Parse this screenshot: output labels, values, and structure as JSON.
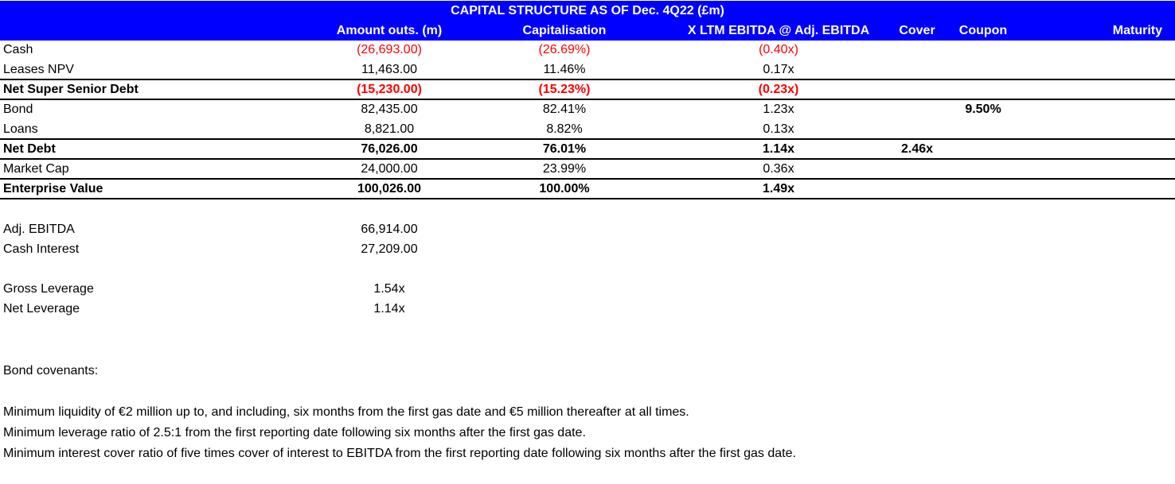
{
  "title": "CAPITAL STRUCTURE AS OF Dec. 4Q22 (£m)",
  "headers": {
    "amount": "Amount outs. (m)",
    "capitalisation": "Capitalisation",
    "ebitda": "X LTM EBITDA @ Adj. EBITDA",
    "cover": "Cover",
    "coupon": "Coupon",
    "maturity": "Maturity"
  },
  "rows": [
    {
      "label": "Cash",
      "amount": "(26,693.00)",
      "cap": "(26.69%)",
      "ebitda": "(0.40x)",
      "cover": "",
      "coupon": ""
    },
    {
      "label": "Leases NPV",
      "amount": "11,463.00",
      "cap": "11.46%",
      "ebitda": "0.17x",
      "cover": "",
      "coupon": ""
    },
    {
      "label": "Net Super Senior Debt",
      "amount": "(15,230.00)",
      "cap": "(15.23%)",
      "ebitda": "(0.23x)",
      "cover": "",
      "coupon": ""
    },
    {
      "label": "Bond",
      "amount": "82,435.00",
      "cap": "82.41%",
      "ebitda": "1.23x",
      "cover": "",
      "coupon": "9.50%"
    },
    {
      "label": "Loans",
      "amount": "8,821.00",
      "cap": "8.82%",
      "ebitda": "0.13x",
      "cover": "",
      "coupon": ""
    },
    {
      "label": "Net Debt",
      "amount": "76,026.00",
      "cap": "76.01%",
      "ebitda": "1.14x",
      "cover": "2.46x",
      "coupon": ""
    },
    {
      "label": "Market Cap",
      "amount": "24,000.00",
      "cap": "23.99%",
      "ebitda": "0.36x",
      "cover": "",
      "coupon": ""
    },
    {
      "label": "Enterprise Value",
      "amount": "100,026.00",
      "cap": "100.00%",
      "ebitda": "1.49x",
      "cover": "",
      "coupon": ""
    }
  ],
  "summary": {
    "adj_ebitda_label": "Adj. EBITDA",
    "adj_ebitda_value": "66,914.00",
    "cash_interest_label": "Cash Interest",
    "cash_interest_value": "27,209.00",
    "gross_leverage_label": "Gross Leverage",
    "gross_leverage_value": "1.54x",
    "net_leverage_label": "Net Leverage",
    "net_leverage_value": "1.14x"
  },
  "covenants": {
    "heading": "Bond covenants:",
    "items": [
      "Minimum liquidity of €2 million up to, and including, six months from the first gas date and €5 million thereafter at all times.",
      "Minimum leverage ratio of 2.5:1 from the first reporting date following six months after the first gas date.",
      "Minimum interest cover ratio of five times cover of interest to EBITDA from the first reporting date following six months after the first gas date."
    ]
  },
  "colors": {
    "header_bg": "#0000ff",
    "header_text": "#ffffff",
    "negative": "#ff0000"
  }
}
